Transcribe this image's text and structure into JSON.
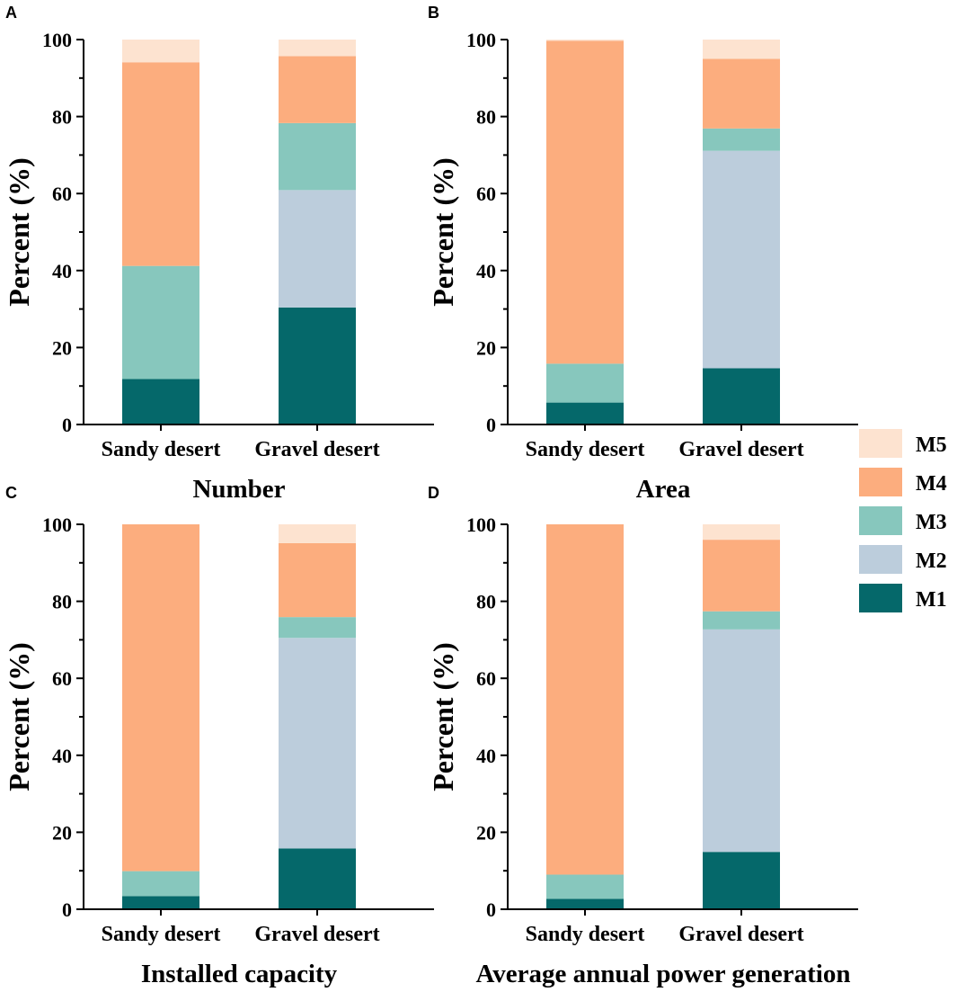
{
  "colors": {
    "M1": "#05686a",
    "M2": "#bccddc",
    "M3": "#87c7bd",
    "M4": "#fcad7e",
    "M5": "#fde3d0",
    "axis": "#000000"
  },
  "legend": {
    "items": [
      "M5",
      "M4",
      "M3",
      "M2",
      "M1"
    ]
  },
  "chart_data": [
    {
      "type": "bar",
      "stacked": true,
      "panel": "A",
      "title": "Number",
      "xlabel": "Number",
      "ylabel": "Percent (%)",
      "ylim": [
        0,
        100
      ],
      "yticks": [
        0,
        20,
        40,
        60,
        80,
        100
      ],
      "categories": [
        "Sandy desert",
        "Gravel desert"
      ],
      "series": [
        {
          "name": "M1",
          "values": [
            11.8,
            30.4
          ]
        },
        {
          "name": "M2",
          "values": [
            0,
            30.5
          ]
        },
        {
          "name": "M3",
          "values": [
            29.4,
            17.4
          ]
        },
        {
          "name": "M4",
          "values": [
            52.9,
            17.4
          ]
        },
        {
          "name": "M5",
          "values": [
            5.9,
            4.3
          ]
        }
      ]
    },
    {
      "type": "bar",
      "stacked": true,
      "panel": "B",
      "title": "Area",
      "xlabel": "Area",
      "ylabel": "Percent (%)",
      "ylim": [
        0,
        100
      ],
      "yticks": [
        0,
        20,
        40,
        60,
        80,
        100
      ],
      "categories": [
        "Sandy desert",
        "Gravel desert"
      ],
      "series": [
        {
          "name": "M1",
          "values": [
            5.7,
            14.6
          ]
        },
        {
          "name": "M2",
          "values": [
            0,
            56.5
          ]
        },
        {
          "name": "M3",
          "values": [
            10.1,
            5.8
          ]
        },
        {
          "name": "M4",
          "values": [
            83.9,
            18.1
          ]
        },
        {
          "name": "M5",
          "values": [
            0.3,
            5.0
          ]
        }
      ]
    },
    {
      "type": "bar",
      "stacked": true,
      "panel": "C",
      "title": "Installed capacity",
      "xlabel": "Installed capacity",
      "ylabel": "Percent (%)",
      "ylim": [
        0,
        100
      ],
      "yticks": [
        0,
        20,
        40,
        60,
        80,
        100
      ],
      "categories": [
        "Sandy desert",
        "Gravel desert"
      ],
      "series": [
        {
          "name": "M1",
          "values": [
            3.4,
            15.8
          ]
        },
        {
          "name": "M2",
          "values": [
            0,
            54.7
          ]
        },
        {
          "name": "M3",
          "values": [
            6.5,
            5.4
          ]
        },
        {
          "name": "M4",
          "values": [
            90.1,
            19.2
          ]
        },
        {
          "name": "M5",
          "values": [
            0,
            4.9
          ]
        }
      ]
    },
    {
      "type": "bar",
      "stacked": true,
      "panel": "D",
      "title": "Average annual power generation",
      "xlabel": "Average annual power generation",
      "ylabel": "Percent (%)",
      "ylim": [
        0,
        100
      ],
      "yticks": [
        0,
        20,
        40,
        60,
        80,
        100
      ],
      "categories": [
        "Sandy desert",
        "Gravel desert"
      ],
      "series": [
        {
          "name": "M1",
          "values": [
            2.7,
            14.9
          ]
        },
        {
          "name": "M2",
          "values": [
            0,
            57.8
          ]
        },
        {
          "name": "M3",
          "values": [
            6.3,
            4.7
          ]
        },
        {
          "name": "M4",
          "values": [
            91.0,
            18.6
          ]
        },
        {
          "name": "M5",
          "values": [
            0,
            4.0
          ]
        }
      ]
    }
  ]
}
